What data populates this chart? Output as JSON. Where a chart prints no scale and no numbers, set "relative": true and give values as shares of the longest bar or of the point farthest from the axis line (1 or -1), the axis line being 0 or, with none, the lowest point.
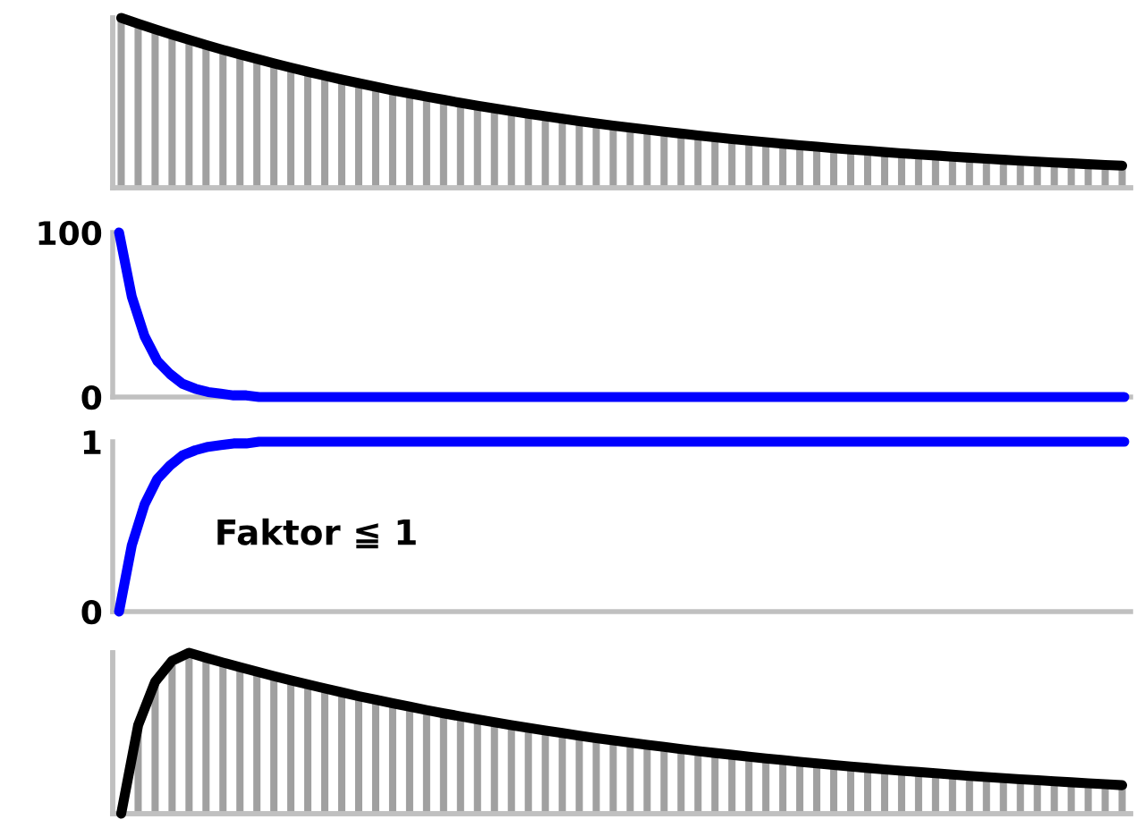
{
  "chart_data": [
    {
      "type": "bar",
      "relative": true,
      "tick_labels": false,
      "categories": [
        null,
        null,
        null,
        null,
        null,
        null,
        null,
        null,
        null,
        null,
        null,
        null,
        null,
        null,
        null,
        null,
        null,
        null,
        null,
        null,
        null,
        null,
        null,
        null,
        null,
        null,
        null,
        null,
        null,
        null,
        null,
        null,
        null,
        null,
        null,
        null,
        null,
        null,
        null,
        null,
        null,
        null,
        null,
        null,
        null,
        null,
        null,
        null,
        null,
        null,
        null,
        null,
        null,
        null,
        null,
        null,
        null,
        null,
        null,
        null
      ],
      "series": [
        {
          "color": "#a0a0a0",
          "values": [
            1,
            0.966,
            0.933,
            0.901,
            0.871,
            0.841,
            0.812,
            0.785,
            0.758,
            0.732,
            0.707,
            0.683,
            0.66,
            0.637,
            0.616,
            0.595,
            0.574,
            0.555,
            0.536,
            0.518,
            0.5,
            0.483,
            0.467,
            0.451,
            0.435,
            0.421,
            0.406,
            0.392,
            0.379,
            0.366,
            0.354,
            0.342,
            0.33,
            0.319,
            0.308,
            0.297,
            0.287,
            0.278,
            0.268,
            0.259,
            0.25,
            0.242,
            0.233,
            0.225,
            0.218,
            0.21,
            0.203,
            0.196,
            0.19,
            0.183,
            0.177,
            0.171,
            0.165,
            0.159,
            0.154,
            0.149,
            0.144,
            0.139,
            0.134,
            0.13
          ]
        }
      ]
    },
    {
      "type": "line",
      "relative": true,
      "tick_labels": false,
      "categories": [
        null,
        null,
        null,
        null,
        null,
        null,
        null,
        null,
        null,
        null,
        null,
        null,
        null,
        null,
        null,
        null,
        null,
        null,
        null,
        null,
        null,
        null,
        null,
        null,
        null,
        null,
        null,
        null,
        null,
        null,
        null,
        null,
        null,
        null,
        null,
        null,
        null,
        null,
        null,
        null,
        null,
        null,
        null,
        null,
        null,
        null,
        null,
        null,
        null,
        null,
        null,
        null,
        null,
        null,
        null,
        null,
        null,
        null,
        null,
        null
      ],
      "series": [
        {
          "color": "#000000",
          "values": [
            1,
            0.966,
            0.933,
            0.901,
            0.871,
            0.841,
            0.812,
            0.785,
            0.758,
            0.732,
            0.707,
            0.683,
            0.66,
            0.637,
            0.616,
            0.595,
            0.574,
            0.555,
            0.536,
            0.518,
            0.5,
            0.483,
            0.467,
            0.451,
            0.435,
            0.421,
            0.406,
            0.392,
            0.379,
            0.366,
            0.354,
            0.342,
            0.33,
            0.319,
            0.308,
            0.297,
            0.287,
            0.278,
            0.268,
            0.259,
            0.25,
            0.242,
            0.233,
            0.225,
            0.218,
            0.21,
            0.203,
            0.196,
            0.19,
            0.183,
            0.177,
            0.171,
            0.165,
            0.159,
            0.154,
            0.149,
            0.144,
            0.139,
            0.134,
            0.13
          ]
        }
      ]
    },
    {
      "type": "line",
      "tick_labels": "y",
      "ylim": [
        0,
        100
      ],
      "yticks": [
        0,
        100
      ],
      "categories": [
        null,
        null,
        null,
        null,
        null,
        null,
        null,
        null,
        null,
        null,
        null,
        null,
        null,
        null,
        null,
        null,
        null,
        null,
        null,
        null,
        null,
        null,
        null,
        null,
        null,
        null,
        null,
        null,
        null,
        null,
        null,
        null,
        null,
        null,
        null,
        null,
        null,
        null,
        null,
        null,
        null,
        null,
        null,
        null,
        null,
        null,
        null,
        null,
        null,
        null,
        null,
        null,
        null,
        null,
        null,
        null,
        null,
        null,
        null,
        null,
        null,
        null,
        null,
        null,
        null,
        null,
        null,
        null,
        null,
        null,
        null,
        null,
        null,
        null,
        null,
        null,
        null,
        null,
        null,
        null
      ],
      "series": [
        {
          "color": "#0000ff",
          "values": [
            100,
            61,
            37,
            22,
            14,
            8,
            5,
            3,
            2,
            1,
            1,
            0,
            0,
            0,
            0,
            0,
            0,
            0,
            0,
            0,
            0,
            0,
            0,
            0,
            0,
            0,
            0,
            0,
            0,
            0,
            0,
            0,
            0,
            0,
            0,
            0,
            0,
            0,
            0,
            0,
            0,
            0,
            0,
            0,
            0,
            0,
            0,
            0,
            0,
            0,
            0,
            0,
            0,
            0,
            0,
            0,
            0,
            0,
            0,
            0,
            0,
            0,
            0,
            0,
            0,
            0,
            0,
            0,
            0,
            0,
            0,
            0,
            0,
            0,
            0,
            0,
            0,
            0,
            0,
            0
          ]
        }
      ]
    },
    {
      "type": "line",
      "tick_labels": "y",
      "ylim": [
        0,
        1
      ],
      "yticks": [
        0,
        1
      ],
      "annotations": [
        "Faktor ≦ 1"
      ],
      "categories": [
        null,
        null,
        null,
        null,
        null,
        null,
        null,
        null,
        null,
        null,
        null,
        null,
        null,
        null,
        null,
        null,
        null,
        null,
        null,
        null,
        null,
        null,
        null,
        null,
        null,
        null,
        null,
        null,
        null,
        null,
        null,
        null,
        null,
        null,
        null,
        null,
        null,
        null,
        null,
        null,
        null,
        null,
        null,
        null,
        null,
        null,
        null,
        null,
        null,
        null,
        null,
        null,
        null,
        null,
        null,
        null,
        null,
        null,
        null,
        null,
        null,
        null,
        null,
        null,
        null,
        null,
        null,
        null,
        null,
        null,
        null,
        null,
        null,
        null,
        null,
        null,
        null,
        null,
        null,
        null
      ],
      "series": [
        {
          "color": "#0000ff",
          "values": [
            0,
            0.39,
            0.63,
            0.78,
            0.86,
            0.92,
            0.95,
            0.97,
            0.98,
            0.99,
            0.99,
            1,
            1,
            1,
            1,
            1,
            1,
            1,
            1,
            1,
            1,
            1,
            1,
            1,
            1,
            1,
            1,
            1,
            1,
            1,
            1,
            1,
            1,
            1,
            1,
            1,
            1,
            1,
            1,
            1,
            1,
            1,
            1,
            1,
            1,
            1,
            1,
            1,
            1,
            1,
            1,
            1,
            1,
            1,
            1,
            1,
            1,
            1,
            1,
            1,
            1,
            1,
            1,
            1,
            1,
            1,
            1,
            1,
            1,
            1,
            1,
            1,
            1,
            1,
            1,
            1,
            1,
            1,
            1,
            1
          ]
        }
      ]
    },
    {
      "type": "bar",
      "relative": true,
      "tick_labels": false,
      "categories": [
        null,
        null,
        null,
        null,
        null,
        null,
        null,
        null,
        null,
        null,
        null,
        null,
        null,
        null,
        null,
        null,
        null,
        null,
        null,
        null,
        null,
        null,
        null,
        null,
        null,
        null,
        null,
        null,
        null,
        null,
        null,
        null,
        null,
        null,
        null,
        null,
        null,
        null,
        null,
        null,
        null,
        null,
        null,
        null,
        null,
        null,
        null,
        null,
        null,
        null,
        null,
        null,
        null,
        null,
        null,
        null,
        null,
        null,
        null
      ],
      "series": [
        {
          "color": "#a0a0a0",
          "values": [
            0.55,
            0.82,
            0.95,
            1,
            0.969,
            0.939,
            0.91,
            0.882,
            0.855,
            0.828,
            0.803,
            0.778,
            0.754,
            0.73,
            0.708,
            0.686,
            0.665,
            0.644,
            0.624,
            0.605,
            0.586,
            0.568,
            0.55,
            0.533,
            0.517,
            0.501,
            0.485,
            0.47,
            0.456,
            0.442,
            0.428,
            0.415,
            0.402,
            0.389,
            0.377,
            0.366,
            0.354,
            0.343,
            0.333,
            0.322,
            0.312,
            0.303,
            0.293,
            0.284,
            0.275,
            0.267,
            0.259,
            0.251,
            0.243,
            0.235,
            0.228,
            0.221,
            0.214,
            0.208,
            0.201,
            0.195,
            0.189,
            0.183,
            0.177
          ]
        }
      ]
    },
    {
      "type": "line",
      "relative": true,
      "tick_labels": false,
      "categories": [
        null,
        null,
        null,
        null,
        null,
        null,
        null,
        null,
        null,
        null,
        null,
        null,
        null,
        null,
        null,
        null,
        null,
        null,
        null,
        null,
        null,
        null,
        null,
        null,
        null,
        null,
        null,
        null,
        null,
        null,
        null,
        null,
        null,
        null,
        null,
        null,
        null,
        null,
        null,
        null,
        null,
        null,
        null,
        null,
        null,
        null,
        null,
        null,
        null,
        null,
        null,
        null,
        null,
        null,
        null,
        null,
        null,
        null,
        null,
        null
      ],
      "series": [
        {
          "color": "#000000",
          "values": [
            0,
            0.55,
            0.82,
            0.95,
            1,
            0.969,
            0.939,
            0.91,
            0.882,
            0.855,
            0.828,
            0.803,
            0.778,
            0.754,
            0.73,
            0.708,
            0.686,
            0.665,
            0.644,
            0.624,
            0.605,
            0.586,
            0.568,
            0.55,
            0.533,
            0.517,
            0.501,
            0.485,
            0.47,
            0.456,
            0.442,
            0.428,
            0.415,
            0.402,
            0.389,
            0.377,
            0.366,
            0.354,
            0.343,
            0.333,
            0.322,
            0.312,
            0.303,
            0.293,
            0.284,
            0.275,
            0.267,
            0.259,
            0.251,
            0.243,
            0.235,
            0.228,
            0.221,
            0.214,
            0.208,
            0.201,
            0.195,
            0.189,
            0.183,
            0.177
          ]
        }
      ]
    }
  ]
}
